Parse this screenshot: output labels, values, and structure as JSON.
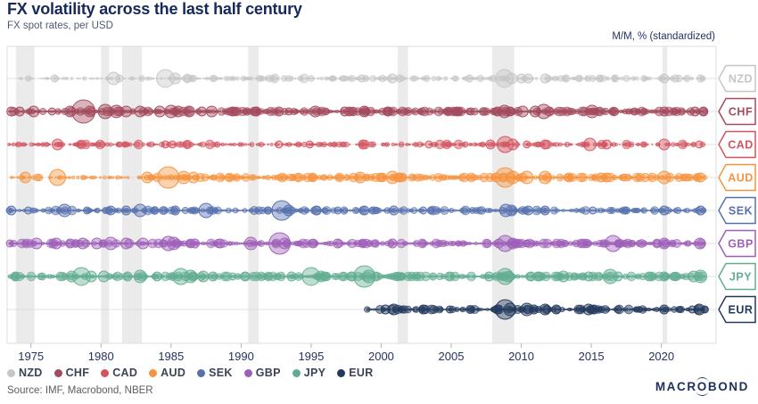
{
  "header": {
    "title": "FX volatility across the last half century",
    "subtitle": "FX spot rates, per USD"
  },
  "axis_note": "M/M, % (standardized)",
  "source": "Source: IMF, Macrobond, NBER",
  "branding": {
    "logo": "MACROBOND",
    "color": "#1d2f5f"
  },
  "chart_data": {
    "type": "scatter",
    "title": "FX volatility across the last half century",
    "subtitle": "FX spot rates, per USD",
    "unit": "M/M, % (standardized)",
    "x_axis": {
      "ticks": [
        1975,
        1980,
        1985,
        1990,
        1995,
        2000,
        2005,
        2010,
        2015,
        2020
      ],
      "min": 1973.3,
      "max": 2023.9
    },
    "row_order": [
      "NZD",
      "CHF",
      "CAD",
      "AUD",
      "SEK",
      "GBP",
      "JPY",
      "EUR"
    ],
    "legend": [
      "NZD",
      "CHF",
      "CAD",
      "AUD",
      "SEK",
      "GBP",
      "JPY",
      "EUR"
    ],
    "legend_position": "bottom",
    "grid": false,
    "recessions": [
      [
        1973.92,
        1975.25
      ],
      [
        1980.0,
        1980.58
      ],
      [
        1981.5,
        1982.92
      ],
      [
        1990.5,
        1991.25
      ],
      [
        2001.17,
        2001.92
      ],
      [
        2007.92,
        2009.5
      ],
      [
        2020.08,
        2020.42
      ]
    ],
    "band_color": "#ebebeb",
    "zero_line_color": "#d8d8d8",
    "border_color": "#dedede",
    "tick_label_color": "#24335f",
    "series": [
      {
        "name": "NZD",
        "color": "#c6c6c6",
        "seed": 11,
        "start": 1974.0,
        "end": 2023.1,
        "scale": 0.72,
        "quiet": [
          {
            "from": 1974.0,
            "to": 1985.3,
            "scale": 0.55
          }
        ],
        "spikes": [
          [
            1974.8,
            3
          ],
          [
            1976.7,
            4
          ],
          [
            1980.9,
            7
          ],
          [
            1981.3,
            4
          ],
          [
            1984.6,
            10
          ],
          [
            1985.3,
            6
          ],
          [
            1986.2,
            4
          ],
          [
            1988.1,
            3
          ],
          [
            1996.5,
            3
          ],
          [
            1998.6,
            4
          ],
          [
            2000.8,
            5
          ],
          [
            2001.3,
            4
          ],
          [
            2006.3,
            4
          ],
          [
            2008.8,
            10
          ],
          [
            2009.3,
            6
          ],
          [
            2010.0,
            5
          ],
          [
            2010.5,
            5
          ],
          [
            2011.7,
            5
          ],
          [
            2013.2,
            4
          ],
          [
            2015.6,
            4
          ],
          [
            2016.7,
            4
          ],
          [
            2020.2,
            5
          ],
          [
            2021.0,
            4
          ],
          [
            2022.8,
            4
          ]
        ]
      },
      {
        "name": "CHF",
        "color": "#a34a5c",
        "seed": 22,
        "start": 1973.35,
        "end": 2023.1,
        "scale": 1.12,
        "quiet": [],
        "spikes": [
          [
            1973.6,
            5
          ],
          [
            1974.2,
            5
          ],
          [
            1975.2,
            6
          ],
          [
            1976.5,
            4
          ],
          [
            1977.8,
            6
          ],
          [
            1978.75,
            13
          ],
          [
            1979.2,
            6
          ],
          [
            1980.3,
            8
          ],
          [
            1981.1,
            7
          ],
          [
            1981.8,
            6
          ],
          [
            1982.8,
            6
          ],
          [
            1984.2,
            6
          ],
          [
            1985.0,
            7
          ],
          [
            1985.5,
            6
          ],
          [
            1986.3,
            6
          ],
          [
            1987.2,
            5
          ],
          [
            1987.9,
            6
          ],
          [
            1989.4,
            5
          ],
          [
            1991.1,
            5
          ],
          [
            1992.7,
            5
          ],
          [
            1993.4,
            4
          ],
          [
            1995.3,
            6
          ],
          [
            1997.4,
            5
          ],
          [
            1998.8,
            6
          ],
          [
            2000.5,
            5
          ],
          [
            2002.9,
            4
          ],
          [
            2004.8,
            4
          ],
          [
            2006.4,
            4
          ],
          [
            2008.3,
            5
          ],
          [
            2008.8,
            7
          ],
          [
            2009.2,
            5
          ],
          [
            2010.1,
            6
          ],
          [
            2011.0,
            6
          ],
          [
            2011.6,
            8
          ],
          [
            2012.0,
            5
          ],
          [
            2015.05,
            7
          ],
          [
            2016.5,
            4
          ],
          [
            2018.3,
            3
          ],
          [
            2020.2,
            5
          ],
          [
            2022.4,
            5
          ],
          [
            2023.0,
            5
          ]
        ]
      },
      {
        "name": "CAD",
        "color": "#d4535f",
        "seed": 33,
        "start": 1973.35,
        "end": 2023.1,
        "scale": 0.6,
        "quiet": [],
        "spikes": [
          [
            1976.9,
            6
          ],
          [
            1978.5,
            4
          ],
          [
            1980.1,
            3
          ],
          [
            1981.7,
            3
          ],
          [
            1984.6,
            4
          ],
          [
            1985.1,
            4
          ],
          [
            1986.1,
            4
          ],
          [
            1988.3,
            3
          ],
          [
            1992.7,
            4
          ],
          [
            1994.9,
            4
          ],
          [
            1998.7,
            5
          ],
          [
            2003.4,
            4
          ],
          [
            2006.0,
            3
          ],
          [
            2007.8,
            5
          ],
          [
            2008.85,
            9
          ],
          [
            2009.4,
            6
          ],
          [
            2010.4,
            4
          ],
          [
            2011.7,
            5
          ],
          [
            2014.9,
            7
          ],
          [
            2016.1,
            5
          ],
          [
            2020.2,
            6
          ],
          [
            2022.7,
            4
          ]
        ]
      },
      {
        "name": "AUD",
        "color": "#f6933f",
        "seed": 44,
        "start": 1973.35,
        "end": 2023.1,
        "scale": 0.95,
        "quiet": [
          {
            "from": 1973.35,
            "to": 1983.2,
            "scale": 0.5
          }
        ],
        "spikes": [
          [
            1974.6,
            6
          ],
          [
            1976.9,
            9
          ],
          [
            1983.3,
            6
          ],
          [
            1984.8,
            12
          ],
          [
            1985.9,
            7
          ],
          [
            1986.6,
            6
          ],
          [
            1989.1,
            4
          ],
          [
            1998.5,
            6
          ],
          [
            2000.8,
            7
          ],
          [
            2001.3,
            5
          ],
          [
            2008.2,
            5
          ],
          [
            2008.85,
            11
          ],
          [
            2009.4,
            7
          ],
          [
            2010.4,
            7
          ],
          [
            2011.7,
            7
          ],
          [
            2013.4,
            5
          ],
          [
            2015.7,
            5
          ],
          [
            2016.1,
            5
          ],
          [
            2020.2,
            7
          ],
          [
            2022.8,
            5
          ]
        ]
      },
      {
        "name": "SEK",
        "color": "#5671ae",
        "seed": 55,
        "start": 1973.35,
        "end": 2023.1,
        "scale": 0.85,
        "quiet": [],
        "spikes": [
          [
            1973.6,
            5
          ],
          [
            1974.8,
            4
          ],
          [
            1977.4,
            7
          ],
          [
            1979.0,
            4
          ],
          [
            1980.7,
            5
          ],
          [
            1981.8,
            5
          ],
          [
            1982.8,
            7
          ],
          [
            1983.8,
            4
          ],
          [
            1985.3,
            5
          ],
          [
            1987.5,
            8
          ],
          [
            1991.9,
            4
          ],
          [
            1992.9,
            11
          ],
          [
            1993.4,
            6
          ],
          [
            1995.4,
            5
          ],
          [
            1996.9,
            4
          ],
          [
            1998.8,
            5
          ],
          [
            2000.9,
            5
          ],
          [
            2003.0,
            4
          ],
          [
            2008.9,
            7
          ],
          [
            2009.3,
            6
          ],
          [
            2010.5,
            5
          ],
          [
            2011.7,
            5
          ],
          [
            2015.1,
            4
          ],
          [
            2017.5,
            4
          ],
          [
            2020.2,
            5
          ],
          [
            2022.8,
            5
          ]
        ]
      },
      {
        "name": "GBP",
        "color": "#9d5fb8",
        "seed": 66,
        "start": 1973.35,
        "end": 2023.1,
        "scale": 1.0,
        "quiet": [],
        "spikes": [
          [
            1973.5,
            4
          ],
          [
            1975.4,
            6
          ],
          [
            1976.8,
            6
          ],
          [
            1977.8,
            5
          ],
          [
            1978.7,
            6
          ],
          [
            1979.7,
            6
          ],
          [
            1980.7,
            7
          ],
          [
            1981.8,
            6
          ],
          [
            1983.0,
            6
          ],
          [
            1984.8,
            8
          ],
          [
            1985.2,
            7
          ],
          [
            1986.7,
            5
          ],
          [
            1988.5,
            5
          ],
          [
            1990.7,
            7
          ],
          [
            1992.75,
            12
          ],
          [
            1993.1,
            6
          ],
          [
            1996.9,
            5
          ],
          [
            1998.7,
            4
          ],
          [
            2000.8,
            5
          ],
          [
            2003.0,
            4
          ],
          [
            2005.5,
            3
          ],
          [
            2008.4,
            5
          ],
          [
            2008.85,
            9
          ],
          [
            2009.4,
            6
          ],
          [
            2010.4,
            4
          ],
          [
            2016.55,
            9
          ],
          [
            2017.0,
            4
          ],
          [
            2019.7,
            4
          ],
          [
            2020.2,
            6
          ],
          [
            2022.75,
            6
          ]
        ]
      },
      {
        "name": "JPY",
        "color": "#62ad92",
        "seed": 77,
        "start": 1973.35,
        "end": 2023.1,
        "scale": 1.1,
        "quiet": [],
        "spikes": [
          [
            1973.2,
            6
          ],
          [
            1973.9,
            5
          ],
          [
            1975.8,
            4
          ],
          [
            1977.9,
            6
          ],
          [
            1978.6,
            10
          ],
          [
            1979.3,
            6
          ],
          [
            1980.2,
            6
          ],
          [
            1981.9,
            5
          ],
          [
            1982.8,
            7
          ],
          [
            1984.0,
            5
          ],
          [
            1985.7,
            9
          ],
          [
            1986.4,
            7
          ],
          [
            1987.3,
            6
          ],
          [
            1988.0,
            5
          ],
          [
            1989.4,
            4
          ],
          [
            1990.3,
            5
          ],
          [
            1992.0,
            4
          ],
          [
            1993.6,
            5
          ],
          [
            1995.0,
            10
          ],
          [
            1995.7,
            6
          ],
          [
            1997.9,
            5
          ],
          [
            1998.8,
            12
          ],
          [
            1999.1,
            7
          ],
          [
            2001.2,
            4
          ],
          [
            2003.7,
            4
          ],
          [
            2007.7,
            5
          ],
          [
            2008.85,
            9
          ],
          [
            2009.1,
            6
          ],
          [
            2010.7,
            5
          ],
          [
            2011.2,
            5
          ],
          [
            2013.0,
            6
          ],
          [
            2014.8,
            5
          ],
          [
            2016.35,
            8
          ],
          [
            2016.9,
            5
          ],
          [
            2020.2,
            5
          ],
          [
            2022.3,
            6
          ],
          [
            2022.8,
            7
          ]
        ]
      },
      {
        "name": "EUR",
        "color": "#24395e",
        "seed": 88,
        "start": 1999.0,
        "end": 2023.1,
        "scale": 0.95,
        "quiet": [],
        "spikes": [
          [
            2000.3,
            5
          ],
          [
            2000.9,
            6
          ],
          [
            2001.5,
            4
          ],
          [
            2003.0,
            5
          ],
          [
            2004.9,
            4
          ],
          [
            2008.3,
            5
          ],
          [
            2008.85,
            11
          ],
          [
            2009.2,
            7
          ],
          [
            2010.4,
            7
          ],
          [
            2010.9,
            5
          ],
          [
            2011.7,
            6
          ],
          [
            2012.5,
            5
          ],
          [
            2014.8,
            6
          ],
          [
            2015.2,
            5
          ],
          [
            2016.9,
            4
          ],
          [
            2018.2,
            3
          ],
          [
            2020.2,
            5
          ],
          [
            2022.2,
            4
          ],
          [
            2022.7,
            6
          ],
          [
            2023.1,
            4
          ]
        ]
      }
    ]
  }
}
